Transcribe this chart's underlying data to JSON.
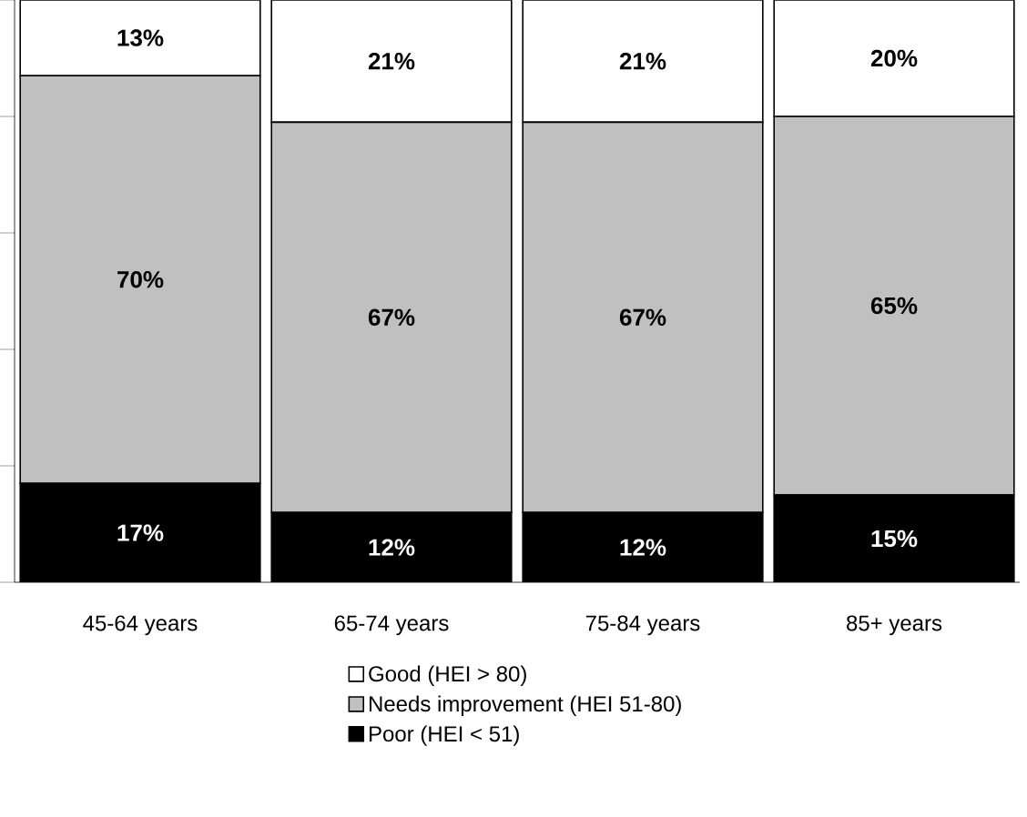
{
  "chart_data": {
    "type": "bar",
    "stacked": true,
    "categories": [
      "45-64 years",
      "65-74 years",
      "75-84 years",
      "85+ years"
    ],
    "series": [
      {
        "name": "Poor (HEI < 51)",
        "color": "#000000",
        "values": [
          17,
          12,
          12,
          15
        ],
        "value_labels": [
          "17%",
          "12%",
          "12%",
          "15%"
        ]
      },
      {
        "name": "Needs improvement (HEI 51-80)",
        "color": "#c0c0c0",
        "values": [
          70,
          67,
          67,
          65
        ],
        "value_labels": [
          "70%",
          "67%",
          "67%",
          "65%"
        ]
      },
      {
        "name": "Good (HEI > 80)",
        "color": "#ffffff",
        "values": [
          13,
          21,
          21,
          20
        ],
        "value_labels": [
          "13%",
          "21%",
          "21%",
          "20%"
        ]
      }
    ],
    "ylim": [
      0,
      100
    ],
    "yticks": [
      {
        "value": 0,
        "label": null
      },
      {
        "value": 20,
        "label": null
      },
      {
        "value": 40,
        "label": null
      },
      {
        "value": 60,
        "label": null
      },
      {
        "value": 80,
        "label": null
      },
      {
        "value": 100,
        "label": null
      }
    ],
    "tick_labels": "x",
    "legend": "bottom"
  }
}
